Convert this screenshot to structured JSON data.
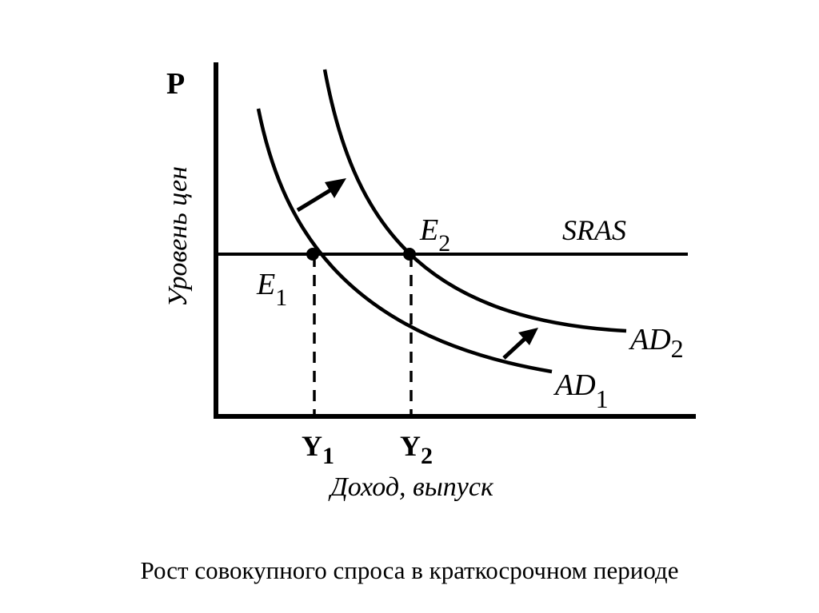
{
  "axes": {
    "y_letter": "P",
    "y_title": "Уровень цен",
    "x_title": "Доход, выпуск"
  },
  "curves": {
    "sras": "SRAS",
    "ad1": {
      "main": "AD",
      "sub": "1"
    },
    "ad2": {
      "main": "AD",
      "sub": "2"
    }
  },
  "points": {
    "e1": {
      "main": "E",
      "sub": "1"
    },
    "e2": {
      "main": "E",
      "sub": "2"
    }
  },
  "ticks": {
    "y1": {
      "main": "Y",
      "sub": "1"
    },
    "y2": {
      "main": "Y",
      "sub": "2"
    }
  },
  "caption": "Рост совокупного спроса в краткосрочном периоде"
}
